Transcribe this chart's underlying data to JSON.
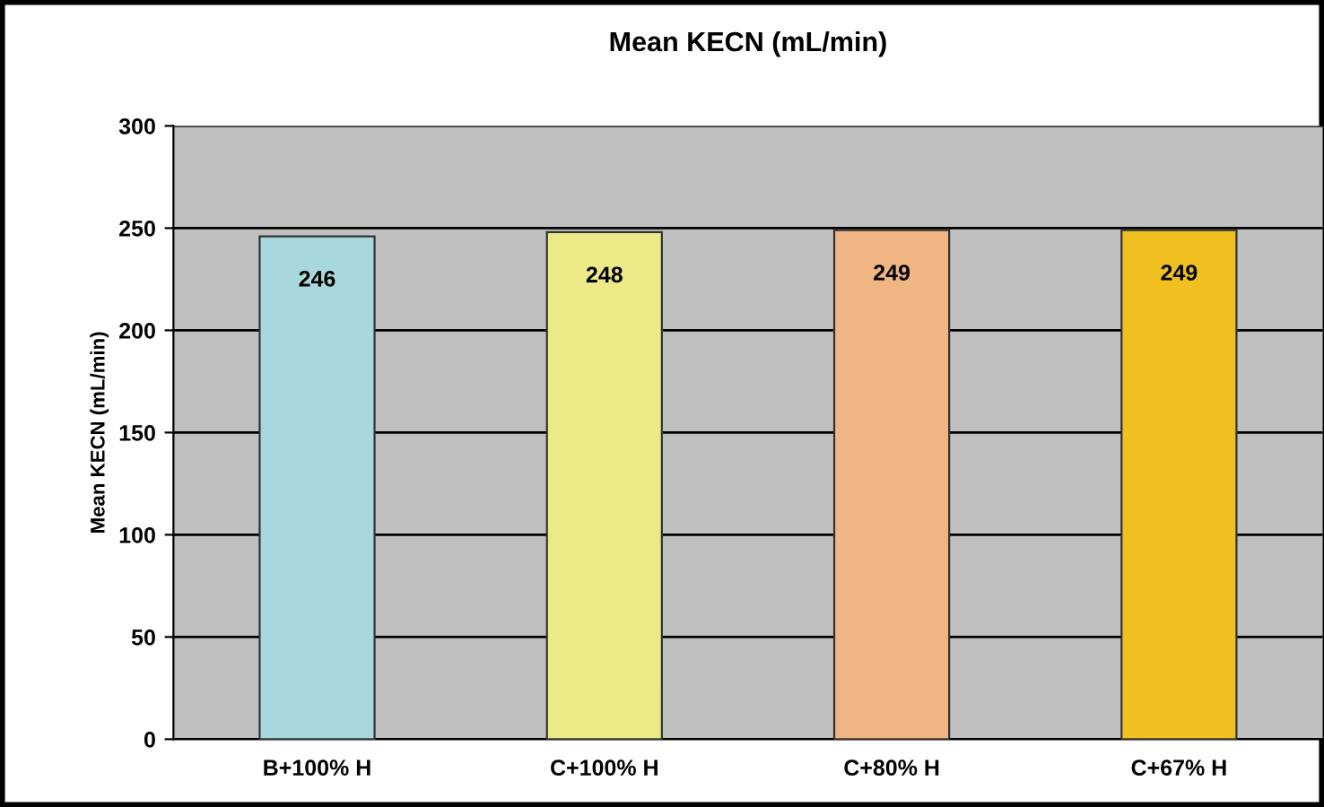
{
  "chart_data": {
    "type": "bar",
    "title": "Mean KECN (mL/min)",
    "ylabel": "Mean KECN (mL/min)",
    "categories": [
      "B+100% H",
      "C+100% H",
      "C+80% H",
      "C+67% H"
    ],
    "values": [
      246,
      248,
      249,
      249
    ],
    "colors": [
      "#a9d8dc",
      "#ecea86",
      "#efb583",
      "#f0c020"
    ],
    "ylim": [
      0,
      300
    ],
    "yticks": [
      0,
      50,
      100,
      150,
      200,
      250,
      300
    ],
    "grid": "y",
    "data_labels": true,
    "legend": false
  }
}
